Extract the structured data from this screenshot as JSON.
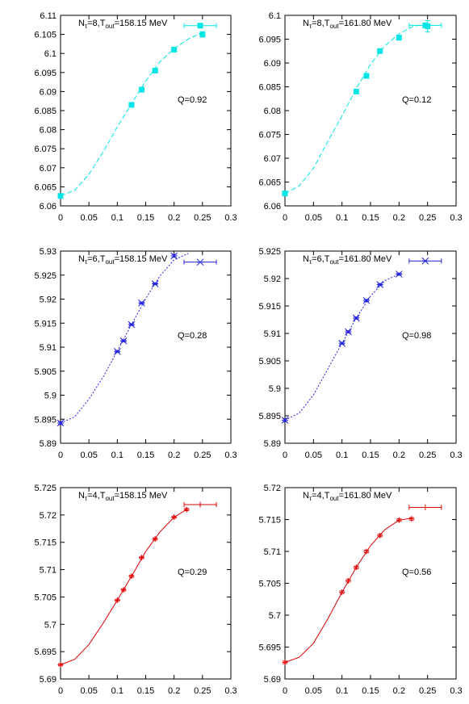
{
  "chart_data": [
    {
      "type": "scatter",
      "label_prefix": "N",
      "label_sub": "τ",
      "label_eq": "=8,T",
      "label_sub2": "out",
      "label_rest": "=158.15 MeV",
      "q_label": "Q=0.92",
      "color": "#00e5e5",
      "marker": "square",
      "line_style": "dash",
      "xlim": [
        0,
        0.3
      ],
      "ylim": [
        6.06,
        6.11
      ],
      "xticks": [
        "0",
        "0.05",
        "0.1",
        "0.15",
        "0.2",
        "0.25",
        "0.3"
      ],
      "yticks": [
        "6.06",
        "6.065",
        "6.07",
        "6.075",
        "6.08",
        "6.085",
        "6.09",
        "6.095",
        "6.1",
        "6.105",
        "6.11"
      ],
      "points": [
        [
          0.0,
          6.0626
        ],
        [
          0.125,
          6.0865
        ],
        [
          0.1428,
          6.0905
        ],
        [
          0.1666,
          6.0955
        ],
        [
          0.2,
          6.101
        ],
        [
          0.25,
          6.105
        ]
      ],
      "errors": [
        0.0004,
        0.0003,
        0.0003,
        0.0003,
        0.0003,
        0.0007
      ],
      "fit_points": [
        [
          0.0,
          6.0626
        ],
        [
          0.025,
          6.0641
        ],
        [
          0.05,
          6.0683
        ],
        [
          0.075,
          6.0742
        ],
        [
          0.1,
          6.0807
        ],
        [
          0.125,
          6.0868
        ],
        [
          0.15,
          6.0928
        ],
        [
          0.175,
          6.0978
        ],
        [
          0.2,
          6.1013
        ],
        [
          0.225,
          6.1038
        ],
        [
          0.25,
          6.1055
        ]
      ],
      "legend_point": [
        0.246,
        6.1073
      ]
    },
    {
      "type": "scatter",
      "label_prefix": "N",
      "label_sub": "τ",
      "label_eq": "=8,T",
      "label_sub2": "out",
      "label_rest": "=161.80 MeV",
      "q_label": "Q=0.12",
      "color": "#00e5e5",
      "marker": "square",
      "line_style": "dash",
      "xlim": [
        0,
        0.3
      ],
      "ylim": [
        6.06,
        6.1
      ],
      "xticks": [
        "0",
        "0.05",
        "0.1",
        "0.15",
        "0.2",
        "0.25",
        "0.3"
      ],
      "yticks": [
        "6.06",
        "6.065",
        "6.07",
        "6.075",
        "6.08",
        "6.085",
        "6.09",
        "6.095",
        "6.1"
      ],
      "points": [
        [
          0.0,
          6.0626
        ],
        [
          0.125,
          6.084
        ],
        [
          0.1428,
          6.0873
        ],
        [
          0.1666,
          6.0925
        ],
        [
          0.2,
          6.0953
        ],
        [
          0.25,
          6.0977
        ]
      ],
      "errors": [
        0.0004,
        0.0003,
        0.0003,
        0.0003,
        0.0003,
        0.0012
      ],
      "fit_points": [
        [
          0.0,
          6.0626
        ],
        [
          0.025,
          6.0642
        ],
        [
          0.05,
          6.0679
        ],
        [
          0.075,
          6.0735
        ],
        [
          0.1,
          6.0789
        ],
        [
          0.125,
          6.0846
        ],
        [
          0.15,
          6.0897
        ],
        [
          0.175,
          6.0936
        ],
        [
          0.2,
          6.0961
        ],
        [
          0.225,
          6.0977
        ],
        [
          0.25,
          6.0982
        ]
      ],
      "legend_point": [
        0.246,
        6.0979
      ]
    },
    {
      "type": "scatter",
      "label_prefix": "N",
      "label_sub": "τ",
      "label_eq": "=6,T",
      "label_sub2": "out",
      "label_rest": "=158.15 MeV",
      "q_label": "Q=0.28",
      "color": "#2222dd",
      "marker": "star",
      "line_style": "dot",
      "xlim": [
        0,
        0.3
      ],
      "ylim": [
        5.89,
        5.93
      ],
      "xticks": [
        "0",
        "0.05",
        "0.1",
        "0.15",
        "0.2",
        "0.25",
        "0.3"
      ],
      "yticks": [
        "5.89",
        "5.895",
        "5.9",
        "5.905",
        "5.91",
        "5.915",
        "5.92",
        "5.925",
        "5.93"
      ],
      "points": [
        [
          0.0,
          5.8942
        ],
        [
          0.1,
          5.9091
        ],
        [
          0.111,
          5.9113
        ],
        [
          0.125,
          5.9147
        ],
        [
          0.1428,
          5.9192
        ],
        [
          0.1666,
          5.9232
        ],
        [
          0.2,
          5.929
        ]
      ],
      "errors": [
        0.0003,
        0.0002,
        0.0002,
        0.0002,
        0.0002,
        0.0002,
        0.0003
      ],
      "fit_points": [
        [
          0.0,
          5.8942
        ],
        [
          0.025,
          5.8955
        ],
        [
          0.05,
          5.8992
        ],
        [
          0.075,
          5.9038
        ],
        [
          0.1,
          5.9092
        ],
        [
          0.125,
          5.9147
        ],
        [
          0.15,
          5.9201
        ],
        [
          0.175,
          5.9248
        ],
        [
          0.2,
          5.9282
        ],
        [
          0.225,
          5.9295
        ]
      ],
      "legend_point": [
        0.246,
        5.9277
      ]
    },
    {
      "type": "scatter",
      "label_prefix": "N",
      "label_sub": "τ",
      "label_eq": "=6,T",
      "label_sub2": "out",
      "label_rest": "=161.80 MeV",
      "q_label": "Q=0.98",
      "color": "#2222dd",
      "marker": "star",
      "line_style": "dot",
      "xlim": [
        0,
        0.3
      ],
      "ylim": [
        5.89,
        5.925
      ],
      "xticks": [
        "0",
        "0.05",
        "0.1",
        "0.15",
        "0.2",
        "0.25",
        "0.3"
      ],
      "yticks": [
        "5.89",
        "5.895",
        "5.9",
        "5.905",
        "5.91",
        "5.915",
        "5.92",
        "5.925"
      ],
      "points": [
        [
          0.0,
          5.8942
        ],
        [
          0.1,
          5.9082
        ],
        [
          0.111,
          5.9103
        ],
        [
          0.125,
          5.9128
        ],
        [
          0.1428,
          5.916
        ],
        [
          0.1666,
          5.9189
        ],
        [
          0.2,
          5.9208
        ]
      ],
      "errors": [
        0.0003,
        0.0002,
        0.0002,
        0.0002,
        0.0002,
        0.0002,
        0.0002
      ],
      "fit_points": [
        [
          0.0,
          5.8942
        ],
        [
          0.025,
          5.8955
        ],
        [
          0.05,
          5.8988
        ],
        [
          0.075,
          5.9035
        ],
        [
          0.1,
          5.9082
        ],
        [
          0.125,
          5.9128
        ],
        [
          0.15,
          5.9168
        ],
        [
          0.175,
          5.9196
        ],
        [
          0.2,
          5.9208
        ]
      ],
      "legend_point": [
        0.246,
        5.9232
      ]
    },
    {
      "type": "scatter",
      "label_prefix": "N",
      "label_sub": "τ",
      "label_eq": "=4,T",
      "label_sub2": "out",
      "label_rest": "=158.15 MeV",
      "q_label": "Q=0.29",
      "color": "#e00000",
      "marker": "plus",
      "line_style": "solid",
      "xlim": [
        0,
        0.3
      ],
      "ylim": [
        5.69,
        5.725
      ],
      "xticks": [
        "0",
        "0.05",
        "0.1",
        "0.15",
        "0.2",
        "0.25",
        "0.3"
      ],
      "yticks": [
        "5.69",
        "5.695",
        "5.7",
        "5.705",
        "5.71",
        "5.715",
        "5.72",
        "5.725"
      ],
      "points": [
        [
          0.0,
          5.6926
        ],
        [
          0.1,
          5.7044
        ],
        [
          0.111,
          5.7063
        ],
        [
          0.125,
          5.7088
        ],
        [
          0.1428,
          5.7122
        ],
        [
          0.1666,
          5.7156
        ],
        [
          0.2,
          5.7196
        ],
        [
          0.222,
          5.721
        ]
      ],
      "errors": [
        0.0002,
        0.0002,
        0.0002,
        0.0002,
        0.0002,
        0.0002,
        0.0002,
        0.0002
      ],
      "fit_points": [
        [
          0.0,
          5.6926
        ],
        [
          0.025,
          5.6936
        ],
        [
          0.05,
          5.6963
        ],
        [
          0.075,
          5.7002
        ],
        [
          0.1,
          5.7044
        ],
        [
          0.125,
          5.7088
        ],
        [
          0.15,
          5.7133
        ],
        [
          0.175,
          5.7169
        ],
        [
          0.2,
          5.7196
        ],
        [
          0.222,
          5.721
        ]
      ],
      "legend_point": [
        0.246,
        5.7219
      ]
    },
    {
      "type": "scatter",
      "label_prefix": "N",
      "label_sub": "τ",
      "label_eq": "=4,T",
      "label_sub2": "out",
      "label_rest": "=161.80 MeV",
      "q_label": "Q=0.56",
      "color": "#e00000",
      "marker": "plus",
      "line_style": "solid",
      "xlim": [
        0,
        0.3
      ],
      "ylim": [
        5.69,
        5.72
      ],
      "xticks": [
        "0",
        "0.05",
        "0.1",
        "0.15",
        "0.2",
        "0.25",
        "0.3"
      ],
      "yticks": [
        "5.69",
        "5.695",
        "5.7",
        "5.705",
        "5.71",
        "5.715",
        "5.72"
      ],
      "points": [
        [
          0.0,
          5.6926
        ],
        [
          0.1,
          5.7036
        ],
        [
          0.111,
          5.7054
        ],
        [
          0.125,
          5.7075
        ],
        [
          0.1428,
          5.71
        ],
        [
          0.1666,
          5.7125
        ],
        [
          0.2,
          5.7149
        ],
        [
          0.222,
          5.7151
        ]
      ],
      "errors": [
        0.0002,
        0.0002,
        0.0002,
        0.0002,
        0.0002,
        0.0002,
        0.0002,
        0.0002
      ],
      "fit_points": [
        [
          0.0,
          5.6926
        ],
        [
          0.025,
          5.6934
        ],
        [
          0.05,
          5.6956
        ],
        [
          0.075,
          5.6994
        ],
        [
          0.1,
          5.7036
        ],
        [
          0.125,
          5.7075
        ],
        [
          0.15,
          5.7109
        ],
        [
          0.175,
          5.7134
        ],
        [
          0.2,
          5.7149
        ],
        [
          0.222,
          5.7152
        ]
      ],
      "legend_point": [
        0.246,
        5.7169
      ]
    }
  ]
}
